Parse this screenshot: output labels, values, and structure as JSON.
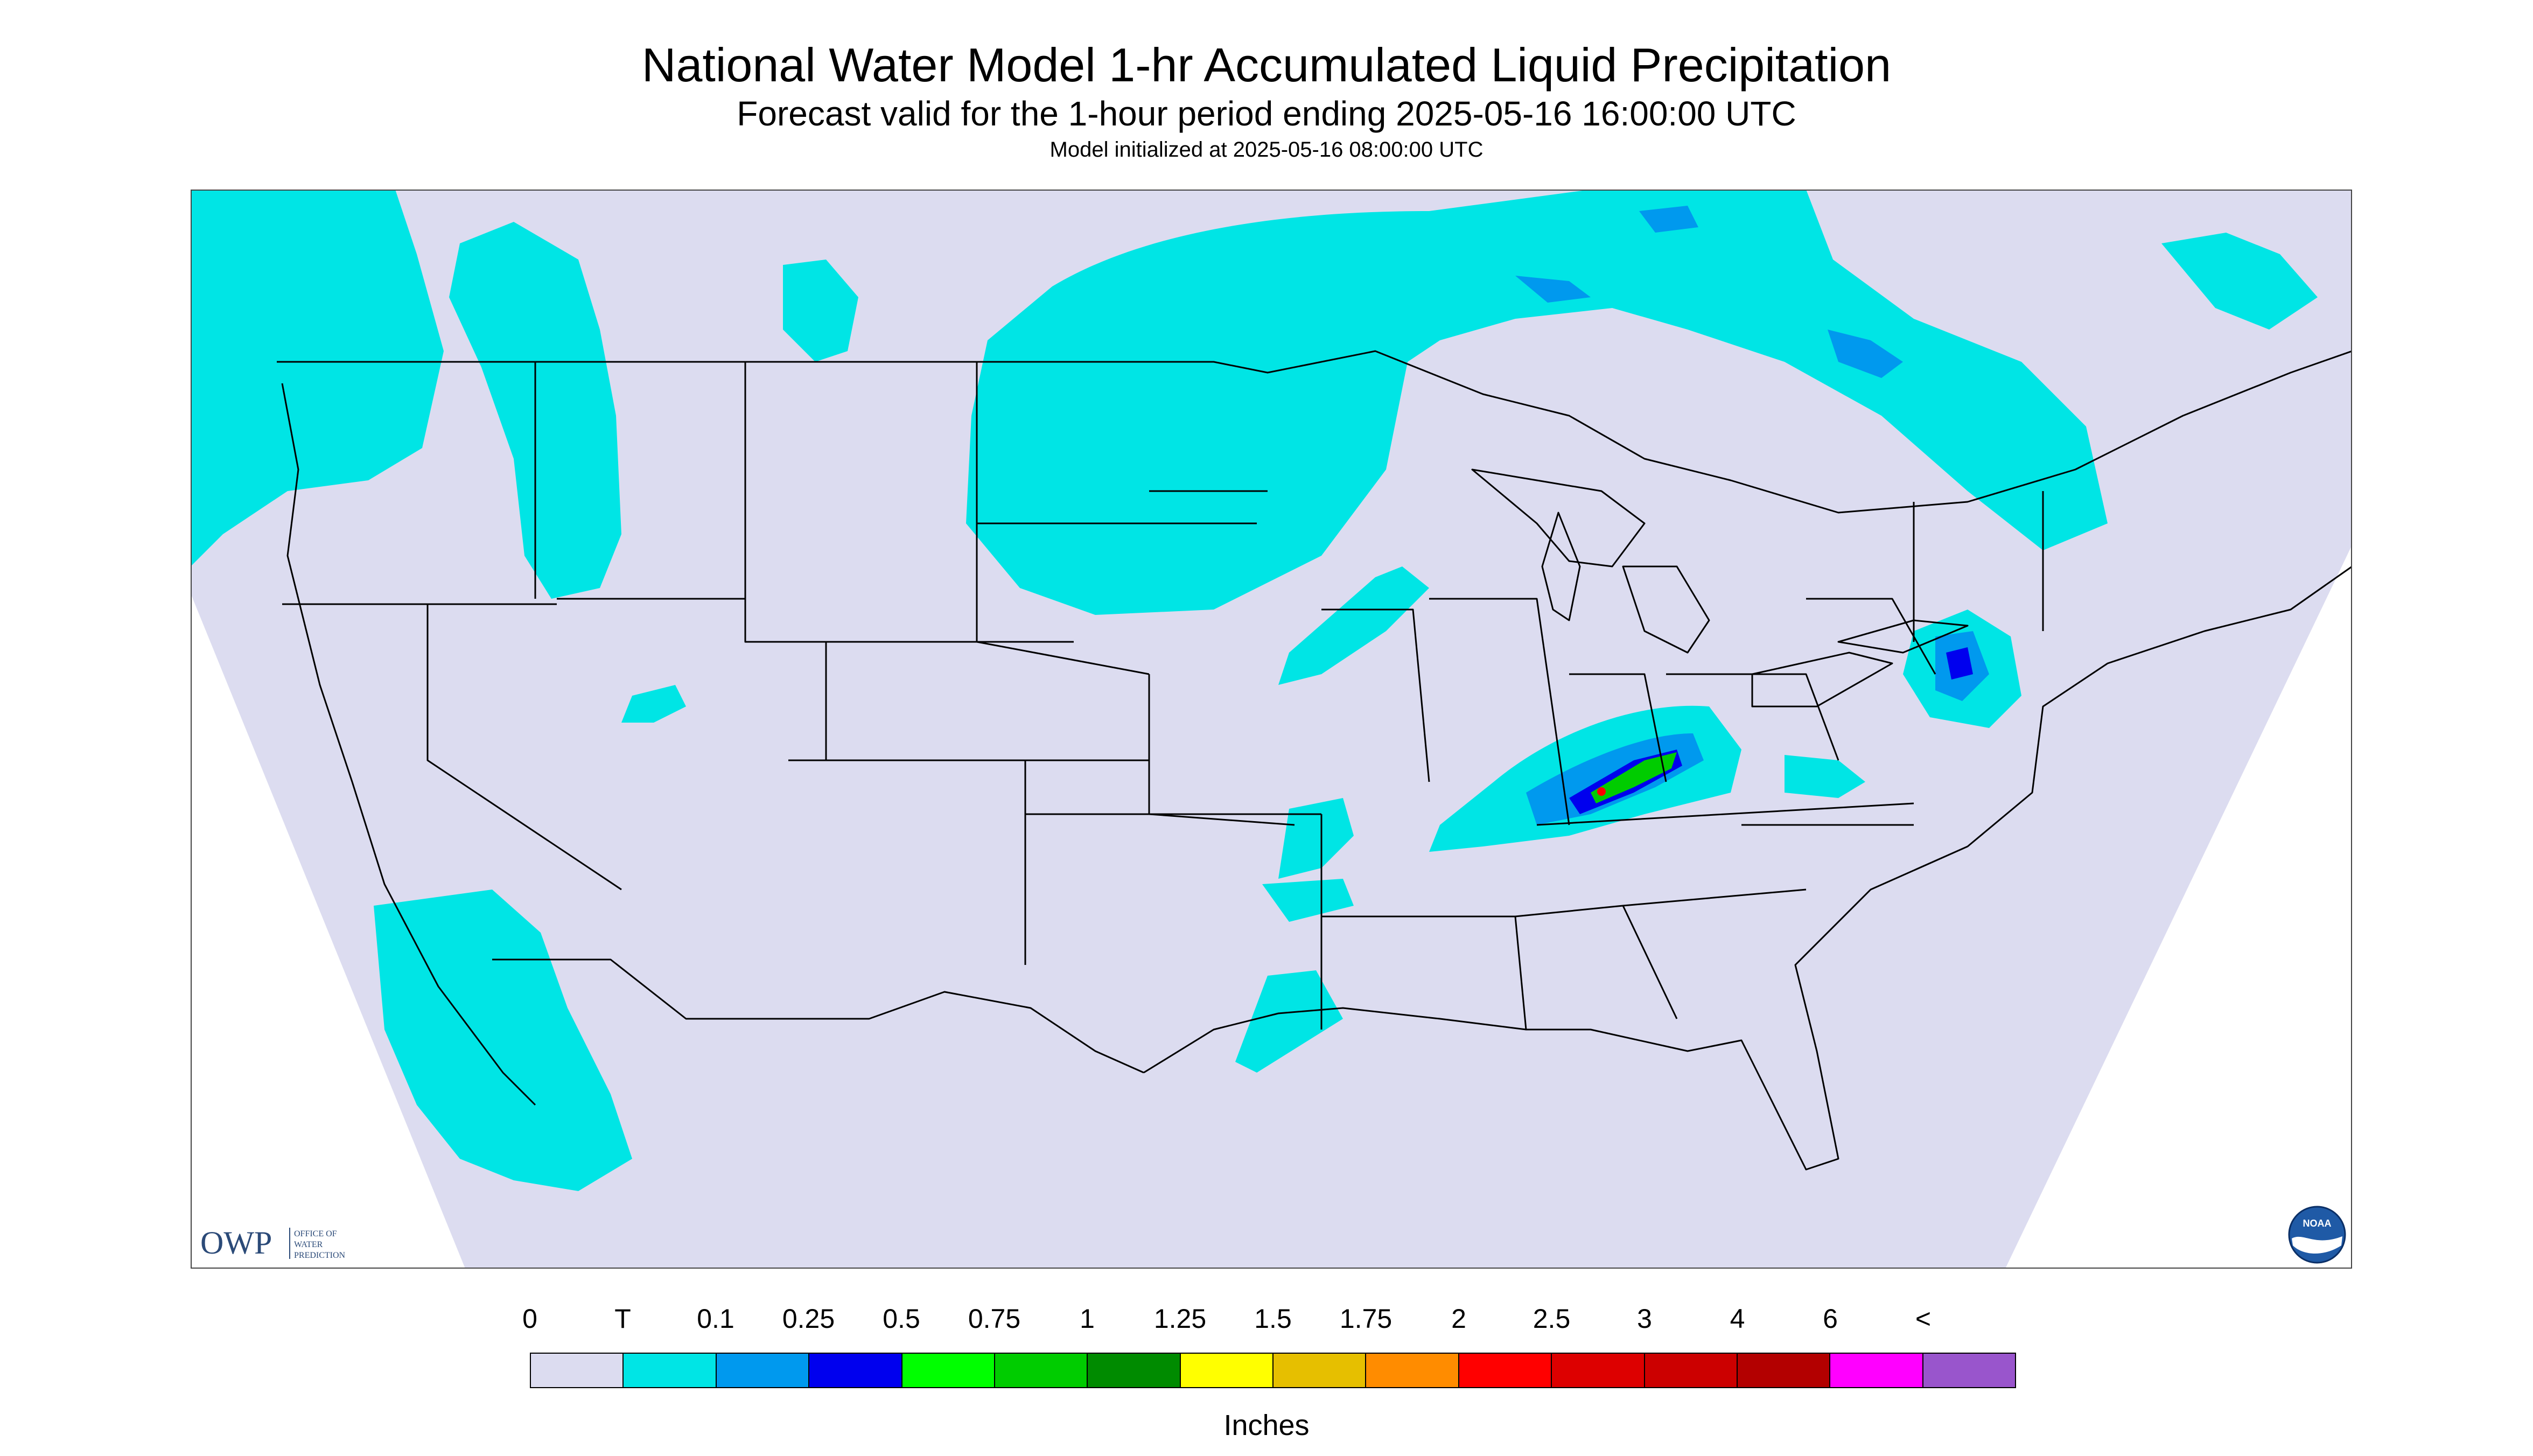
{
  "title": "National Water Model 1-hr Accumulated Liquid Precipitation",
  "subtitle": "Forecast valid for the 1-hour period ending 2025-05-16 16:00:00 UTC",
  "init_text": "Model initialized at 2025-05-16 08:00:00 UTC",
  "legend": {
    "labels": [
      "0",
      "T",
      "0.1",
      "0.25",
      "0.5",
      "0.75",
      "1",
      "1.25",
      "1.5",
      "1.75",
      "2",
      "2.5",
      "3",
      "4",
      "6",
      "<"
    ],
    "colors": [
      "#dcdcf0",
      "#00e5e5",
      "#0099ee",
      "#0000ee",
      "#00ff00",
      "#00cc00",
      "#008b00",
      "#ffff00",
      "#e6bf00",
      "#ff8c00",
      "#ff0000",
      "#dd0000",
      "#cc0000",
      "#b30000",
      "#ff00ff",
      "#9955cc"
    ],
    "units": "Inches"
  },
  "logos": {
    "owp": {
      "letters": "OWP",
      "sub": [
        "OFFICE OF",
        "WATER",
        "PREDICTION"
      ]
    },
    "noaa": {
      "text": "NOAA"
    }
  },
  "colors": {
    "domain_background": "#dcdcf0",
    "trace_precip": "#00e5e5",
    "light_precip": "#0099ee",
    "moderate_precip": "#0000ee",
    "heavy_precip": "#00cc00",
    "border_lines": "#000000"
  }
}
